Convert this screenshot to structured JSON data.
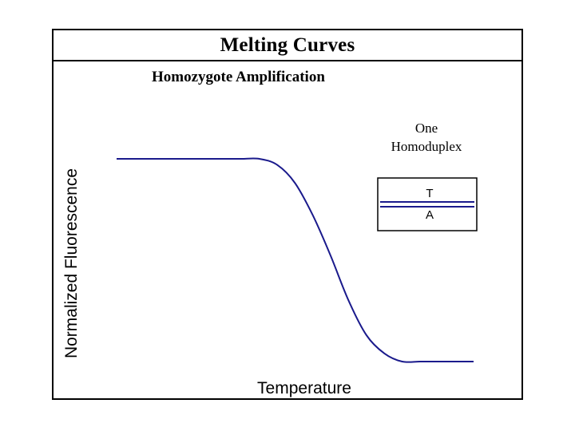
{
  "chart_data": {
    "type": "line",
    "title": "Melting Curves",
    "subtitle": "Homozygote Amplification",
    "xlabel": "Temperature",
    "ylabel": "Normalized Fluorescence",
    "grid": false,
    "series": [
      {
        "color": "#1a1a8c",
        "x": [
          0,
          5,
          10,
          15,
          20,
          25,
          30,
          35,
          40,
          45,
          50,
          55,
          60,
          65,
          70,
          75,
          80,
          85,
          90,
          95,
          100
        ],
        "y": [
          1.0,
          1.0,
          1.0,
          1.0,
          1.0,
          1.0,
          1.0,
          1.0,
          1.0,
          0.97,
          0.88,
          0.72,
          0.52,
          0.3,
          0.13,
          0.04,
          0.0,
          0.0,
          0.0,
          0.0,
          0.0
        ]
      }
    ],
    "annotation": {
      "lines": [
        "One",
        "Homoduplex"
      ],
      "duplex": {
        "top": "T",
        "bottom": "A"
      }
    }
  }
}
